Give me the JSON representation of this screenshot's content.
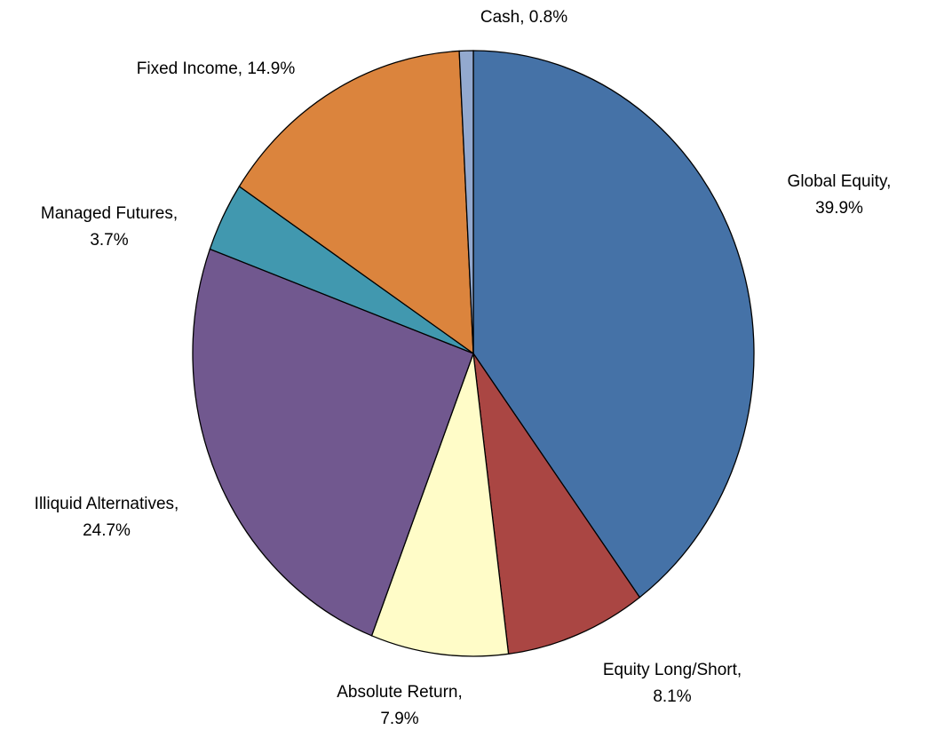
{
  "chart_data": {
    "type": "pie",
    "values": [
      39.9,
      8.1,
      7.9,
      24.7,
      3.7,
      14.9,
      0.8
    ],
    "value_labels": [
      "Global Equity, 39.9%",
      "Equity Long/Short,\n8.1%",
      "Absolute Return,\n7.9%",
      "Illiquid Alternatives,\n24.7%",
      "Managed Futures,\n3.7%",
      "Fixed Income, 14.9%",
      "Cash, 0.8%"
    ],
    "colors": [
      "#4572a7",
      "#aa4643",
      "#fffcc8",
      "#71588f",
      "#4198af",
      "#db843d",
      "#93a9cf"
    ]
  }
}
